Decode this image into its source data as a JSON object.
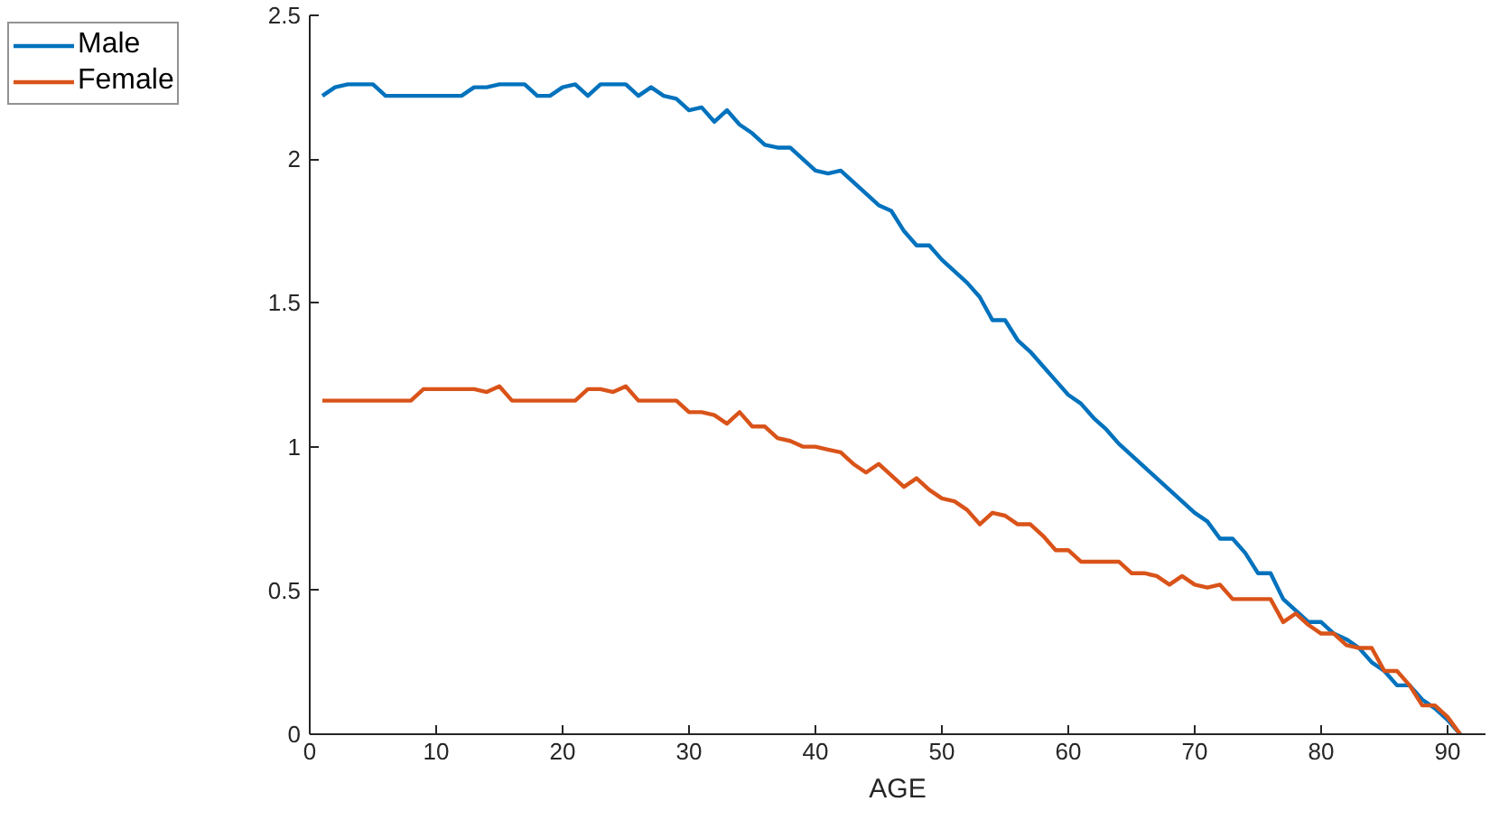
{
  "chart_data": {
    "type": "line",
    "xlabel": "AGE",
    "xlim": [
      0,
      93
    ],
    "ylim": [
      0,
      2.5
    ],
    "xticks": [
      0,
      10,
      20,
      30,
      40,
      50,
      60,
      70,
      80,
      90
    ],
    "yticks": [
      0,
      0.5,
      1,
      1.5,
      2,
      2.5
    ],
    "grid": false,
    "legend": "top left",
    "marker": "none",
    "line_style": "solid",
    "x": [
      1,
      2,
      3,
      4,
      5,
      6,
      7,
      8,
      9,
      10,
      11,
      12,
      13,
      14,
      15,
      16,
      17,
      18,
      19,
      20,
      21,
      22,
      23,
      24,
      25,
      26,
      27,
      28,
      29,
      30,
      31,
      32,
      33,
      34,
      35,
      36,
      37,
      38,
      39,
      40,
      41,
      42,
      43,
      44,
      45,
      46,
      47,
      48,
      49,
      50,
      51,
      52,
      53,
      54,
      55,
      56,
      57,
      58,
      59,
      60,
      61,
      62,
      63,
      64,
      65,
      66,
      67,
      68,
      69,
      70,
      71,
      72,
      73,
      74,
      75,
      76,
      77,
      78,
      79,
      80,
      81,
      82,
      83,
      84,
      85,
      86,
      87,
      88,
      89,
      90,
      91
    ],
    "series": [
      {
        "name": "Male",
        "color": "#0072bd",
        "values": [
          2.22,
          2.25,
          2.26,
          2.26,
          2.26,
          2.22,
          2.22,
          2.22,
          2.22,
          2.22,
          2.22,
          2.22,
          2.25,
          2.25,
          2.26,
          2.26,
          2.26,
          2.22,
          2.22,
          2.25,
          2.26,
          2.22,
          2.26,
          2.26,
          2.26,
          2.22,
          2.25,
          2.22,
          2.21,
          2.17,
          2.18,
          2.13,
          2.17,
          2.12,
          2.09,
          2.05,
          2.04,
          2.04,
          2.0,
          1.96,
          1.95,
          1.96,
          1.92,
          1.88,
          1.84,
          1.82,
          1.75,
          1.7,
          1.7,
          1.65,
          1.61,
          1.57,
          1.52,
          1.44,
          1.44,
          1.37,
          1.33,
          1.28,
          1.23,
          1.18,
          1.15,
          1.1,
          1.06,
          1.01,
          0.97,
          0.93,
          0.89,
          0.85,
          0.81,
          0.77,
          0.74,
          0.68,
          0.68,
          0.63,
          0.56,
          0.56,
          0.47,
          0.43,
          0.39,
          0.39,
          0.35,
          0.33,
          0.3,
          0.25,
          0.22,
          0.17,
          0.17,
          0.12,
          0.09,
          0.05,
          0.0
        ]
      },
      {
        "name": "Female",
        "color": "#d95319",
        "values": [
          1.16,
          1.16,
          1.16,
          1.16,
          1.16,
          1.16,
          1.16,
          1.16,
          1.2,
          1.2,
          1.2,
          1.2,
          1.2,
          1.19,
          1.21,
          1.16,
          1.16,
          1.16,
          1.16,
          1.16,
          1.16,
          1.2,
          1.2,
          1.19,
          1.21,
          1.16,
          1.16,
          1.16,
          1.16,
          1.12,
          1.12,
          1.11,
          1.08,
          1.12,
          1.07,
          1.07,
          1.03,
          1.02,
          1.0,
          1.0,
          0.99,
          0.98,
          0.94,
          0.91,
          0.94,
          0.9,
          0.86,
          0.89,
          0.85,
          0.82,
          0.81,
          0.78,
          0.73,
          0.77,
          0.76,
          0.73,
          0.73,
          0.69,
          0.64,
          0.64,
          0.6,
          0.6,
          0.6,
          0.6,
          0.56,
          0.56,
          0.55,
          0.52,
          0.55,
          0.52,
          0.51,
          0.52,
          0.47,
          0.47,
          0.47,
          0.47,
          0.39,
          0.42,
          0.38,
          0.35,
          0.35,
          0.31,
          0.3,
          0.3,
          0.22,
          0.22,
          0.17,
          0.1,
          0.1,
          0.06,
          0.0
        ]
      }
    ]
  }
}
